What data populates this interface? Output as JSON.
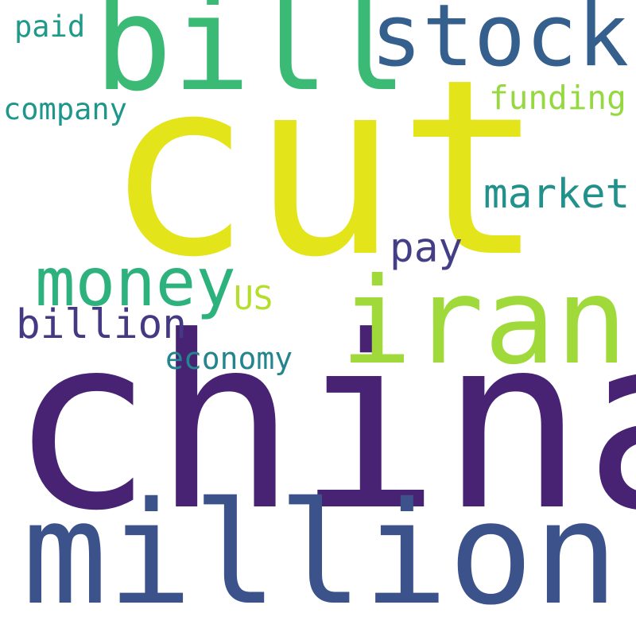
{
  "words": [
    {
      "text": "cut",
      "color": "#e3e419"
    },
    {
      "text": "china",
      "color": "#482374"
    },
    {
      "text": "million",
      "color": "#3b528b"
    },
    {
      "text": "bill",
      "color": "#3bba75"
    },
    {
      "text": "iran",
      "color": "#9fda3a"
    },
    {
      "text": "stock",
      "color": "#355f8d"
    },
    {
      "text": "money",
      "color": "#2db27d"
    },
    {
      "text": "market",
      "color": "#21918c"
    },
    {
      "text": "pay",
      "color": "#433e85"
    },
    {
      "text": "billion",
      "color": "#443983"
    },
    {
      "text": "funding",
      "color": "#95d840"
    },
    {
      "text": "company",
      "color": "#1f968b"
    },
    {
      "text": "economy",
      "color": "#25858e"
    },
    {
      "text": "US",
      "color": "#b5de2b"
    },
    {
      "text": "paid",
      "color": "#1f9a8a"
    }
  ]
}
